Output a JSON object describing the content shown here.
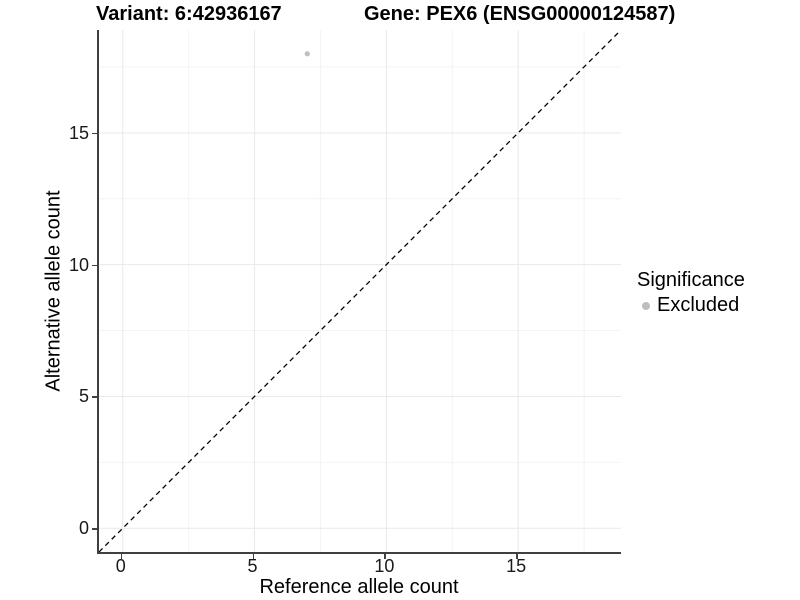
{
  "titles": {
    "left": "Variant: 6:42936167",
    "right": "Gene: PEX6 (ENSG00000124587)"
  },
  "chart_data": {
    "type": "scatter",
    "xlabel": "Reference allele count",
    "ylabel": "Alternative allele count",
    "xlim": [
      -0.9,
      18.9
    ],
    "ylim": [
      -0.9,
      18.9
    ],
    "x_ticks": [
      0,
      5,
      10,
      15
    ],
    "y_ticks": [
      0,
      5,
      10,
      15
    ],
    "minor_gridlines": [
      2.5,
      7.5,
      12.5,
      17.5
    ],
    "points": [
      {
        "x": 7,
        "y": 18,
        "significance": "Excluded"
      }
    ],
    "identity_line": {
      "slope": 1,
      "intercept": 0,
      "style": "dashed",
      "color": "#000000"
    },
    "legend": {
      "title": "Significance",
      "position": "right",
      "items": [
        {
          "label": "Excluded",
          "color": "#bfbfbf"
        }
      ]
    },
    "grid": "major+minor",
    "colors": {
      "background": "#ffffff",
      "major_grid": "#e9e9e9",
      "minor_grid": "#f4f4f4",
      "axis_line": "#404040",
      "point": "#bfbfbf",
      "tick_text": "#1a1a1a"
    }
  }
}
